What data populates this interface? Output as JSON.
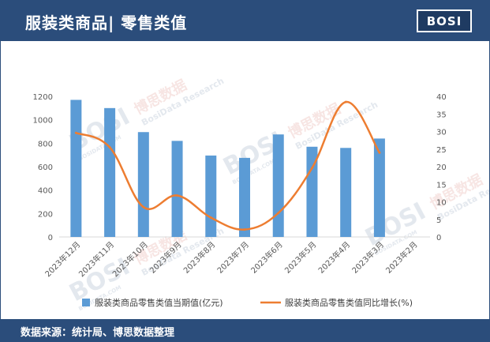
{
  "header": {
    "title": "服装类商品| 零售类值"
  },
  "logo": {
    "text": "BOSI"
  },
  "footer": {
    "source": "数据来源：统计局、博思数据整理"
  },
  "watermark": {
    "brand": "BOSI",
    "cn": "博思数据",
    "en": "BosiData Research",
    "domain": "BOSIDATA.COM"
  },
  "colors": {
    "header": "#2b4d7b",
    "bar": "#5b9bd5",
    "line": "#ed7d31",
    "axis_text": "#595959"
  },
  "chart_data": {
    "type": "bar",
    "categories": [
      "2023年12月",
      "2023年11月",
      "2023年10月",
      "2023年9月",
      "2023年8月",
      "2023年7月",
      "2023年6月",
      "2023年5月",
      "2023年4月",
      "2023年3月",
      "2023年2月"
    ],
    "series": [
      {
        "name": "服装类商品零售类值当期值(亿元)",
        "type": "bar",
        "axis": "left",
        "values": [
          1170,
          1100,
          895,
          820,
          695,
          675,
          875,
          770,
          760,
          840,
          null
        ]
      },
      {
        "name": "服装类商品零售类值同比增长(%)",
        "type": "line",
        "axis": "right",
        "values": [
          29.6,
          25.5,
          8.5,
          11.8,
          5.5,
          2.1,
          6.8,
          19.6,
          38.4,
          24.0,
          null
        ]
      }
    ],
    "y_left": {
      "ticks": [
        0,
        200,
        400,
        600,
        800,
        1000,
        1200
      ],
      "tick_labels": [
        "0",
        "200",
        "400",
        "600",
        "800",
        "1000",
        "1200"
      ],
      "range": [
        0,
        1200
      ]
    },
    "y_right": {
      "ticks": [
        0,
        5,
        10,
        15,
        20,
        25,
        30,
        35,
        40
      ],
      "tick_labels": [
        "0",
        "5",
        "10",
        "15",
        "20",
        "25",
        "30",
        "35",
        "40"
      ],
      "range": [
        0,
        40
      ]
    },
    "grid": false,
    "legend_position": "bottom"
  }
}
